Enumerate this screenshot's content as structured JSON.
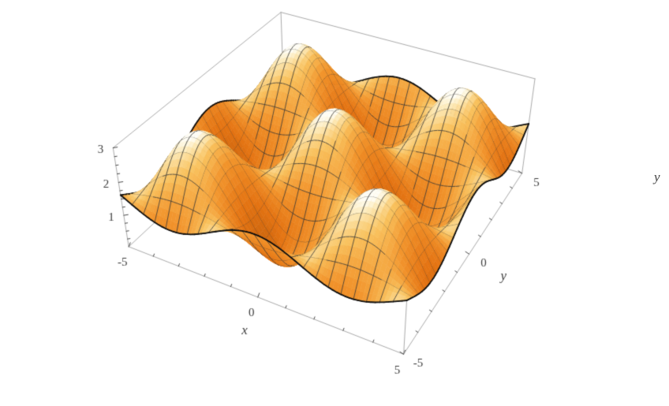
{
  "figure": {
    "background": "#ffffff"
  },
  "stray_label": {
    "text": "y"
  },
  "chart_data": {
    "type": "surface",
    "title": "",
    "function": "z = 1.5 * (1 + cos(x) * cos(y))",
    "surface_params": {
      "offset": 1.5,
      "amplitude": 1.5
    },
    "x_range": [
      -5,
      5
    ],
    "y_range": [
      -5,
      5
    ],
    "z_range": [
      0,
      3
    ],
    "x_label": "x",
    "y_label": "y",
    "z_label": "",
    "x_ticks": {
      "major": [
        -5,
        0,
        5
      ],
      "major_labels": [
        "-5",
        "0",
        "5"
      ],
      "minor_step": 1
    },
    "y_ticks": {
      "major": [
        -5,
        0,
        5
      ],
      "major_labels": [
        "-5",
        "0",
        "5"
      ],
      "minor_step": 1
    },
    "z_ticks": {
      "major": [
        1,
        2,
        3
      ],
      "major_labels": [
        "1",
        "2",
        "3"
      ],
      "minor_step": 0.25
    },
    "mesh_divisions": 24,
    "grid_resolution": 72,
    "view": {
      "viewpoint": [
        1.3,
        -2.4,
        2.0
      ],
      "box_ratios": [
        1,
        1,
        0.4
      ],
      "scale": 1285,
      "center": [
        424,
        205
      ]
    },
    "light_direction": [
      -0.35,
      -0.1,
      0.93
    ],
    "style": {
      "box_edge_color": "#ababab",
      "tick_color": "#4a4a4a",
      "tick_label_color": "#3d3d3d",
      "axis_label_color": "#3d3d3d",
      "mesh_line_color": "#333333",
      "outline_color": "#0d0d0d",
      "shading": {
        "ambient": 0.15,
        "diffuse": 0.45,
        "height": 0.45
      },
      "surface_palette": [
        {
          "t": 0.0,
          "color": "#7a4610"
        },
        {
          "t": 0.2,
          "color": "#b35708"
        },
        {
          "t": 0.4,
          "color": "#e47312"
        },
        {
          "t": 0.58,
          "color": "#f2952d"
        },
        {
          "t": 0.75,
          "color": "#f9c25e"
        },
        {
          "t": 0.9,
          "color": "#fdeab8"
        },
        {
          "t": 1.0,
          "color": "#fffef6"
        }
      ]
    }
  }
}
